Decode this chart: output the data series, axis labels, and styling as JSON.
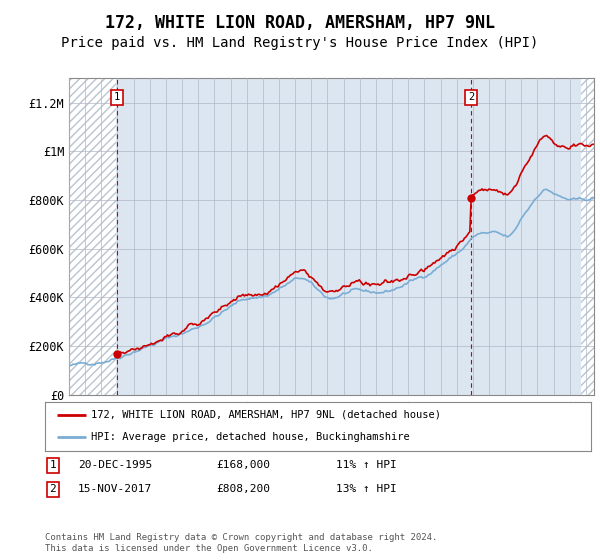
{
  "title": "172, WHITE LION ROAD, AMERSHAM, HP7 9NL",
  "subtitle": "Price paid vs. HM Land Registry's House Price Index (HPI)",
  "title_fontsize": 12,
  "subtitle_fontsize": 10,
  "xmin": 1993.0,
  "xmax": 2025.5,
  "ymin": 0,
  "ymax": 1300000,
  "yticks": [
    0,
    200000,
    400000,
    600000,
    800000,
    1000000,
    1200000
  ],
  "ytick_labels": [
    "£0",
    "£200K",
    "£400K",
    "£600K",
    "£800K",
    "£1M",
    "£1.2M"
  ],
  "hatch_left_x": 1995.92,
  "hatch_right_x": 2024.67,
  "sale1_x": 1995.97,
  "sale1_y": 168000,
  "sale1_label": "1",
  "sale2_x": 2017.88,
  "sale2_y": 808200,
  "sale2_label": "2",
  "legend_line1": "172, WHITE LION ROAD, AMERSHAM, HP7 9NL (detached house)",
  "legend_line2": "HPI: Average price, detached house, Buckinghamshire",
  "annotation1_num": "1",
  "annotation1_date": "20-DEC-1995",
  "annotation1_price": "£168,000",
  "annotation1_hpi": "11% ↑ HPI",
  "annotation2_num": "2",
  "annotation2_date": "15-NOV-2017",
  "annotation2_price": "£808,200",
  "annotation2_hpi": "13% ↑ HPI",
  "footer": "Contains HM Land Registry data © Crown copyright and database right 2024.\nThis data is licensed under the Open Government Licence v3.0.",
  "red_color": "#cc0000",
  "blue_color": "#7aadd4",
  "bg_color": "#dce6f1",
  "grid_color": "#b0b8c8"
}
